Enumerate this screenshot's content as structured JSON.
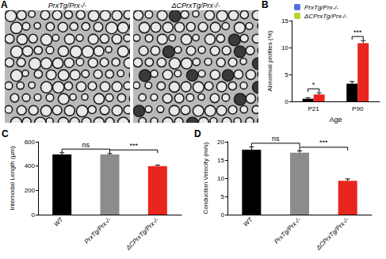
{
  "panel_a": {
    "panel": "A",
    "image_titles": [
      "PrxTg/Prx-/-",
      "ΔCPrxTg/Prx-/-"
    ]
  },
  "chart_data": [
    {
      "type": "bar",
      "panel": "B",
      "y_label": "Abnormal profiles (%)",
      "x_label": "Age",
      "categories": [
        "P21",
        "P90"
      ],
      "series": [
        {
          "name": "PrxTg/Prx-/-",
          "color": "#000000",
          "values": [
            0.5,
            3.3
          ],
          "errors": [
            0.2,
            0.4
          ]
        },
        {
          "name": "ΔCPrxTg/Prx-/-",
          "color": "#e8251f",
          "values": [
            1.3,
            10.8
          ],
          "errors": [
            0.3,
            0.5
          ]
        }
      ],
      "ylim": [
        0,
        15
      ],
      "yticks": [
        0,
        5,
        10,
        15
      ],
      "legend": "upper left",
      "annotations": [
        {
          "text": "*",
          "category": "P21"
        },
        {
          "text": "***",
          "category": "P90"
        }
      ]
    },
    {
      "type": "bar",
      "panel": "C",
      "y_label": "Internodal Length (µm)",
      "categories": [
        "WT",
        "PrxTg/Prx-/-",
        "ΔCPrxTg/Prx-/-"
      ],
      "values": [
        495,
        495,
        400
      ],
      "errors": [
        15,
        8,
        8
      ],
      "colors": [
        "#000000",
        "#8c8c8c",
        "#e8251f"
      ],
      "ylim": [
        0,
        600
      ],
      "yticks": [
        0,
        200,
        400,
        600
      ],
      "annotations": [
        {
          "text": "ns",
          "from": "WT",
          "to": "PrxTg/Prx-/-"
        },
        {
          "text": "***",
          "from": "PrxTg/Prx-/-",
          "to": "ΔCPrxTg/Prx-/-"
        }
      ]
    },
    {
      "type": "bar",
      "panel": "D",
      "y_label": "Conduction Velocity (m/s)",
      "categories": [
        "WT",
        "PrxTg/Prx-/-",
        "ΔCPrxTg/Prx-/-"
      ],
      "values": [
        17.8,
        17,
        9.3
      ],
      "errors": [
        0.8,
        0.5,
        0.5
      ],
      "colors": [
        "#000000",
        "#8c8c8c",
        "#e8251f"
      ],
      "ylim": [
        0,
        20
      ],
      "yticks": [
        0,
        5,
        10,
        15,
        20
      ],
      "annotations": [
        {
          "text": "ns",
          "from": "WT",
          "to": "PrxTg/Prx-/-"
        },
        {
          "text": "***",
          "from": "PrxTg/Prx-/-",
          "to": "ΔCPrxTg/Prx-/-"
        }
      ]
    }
  ]
}
